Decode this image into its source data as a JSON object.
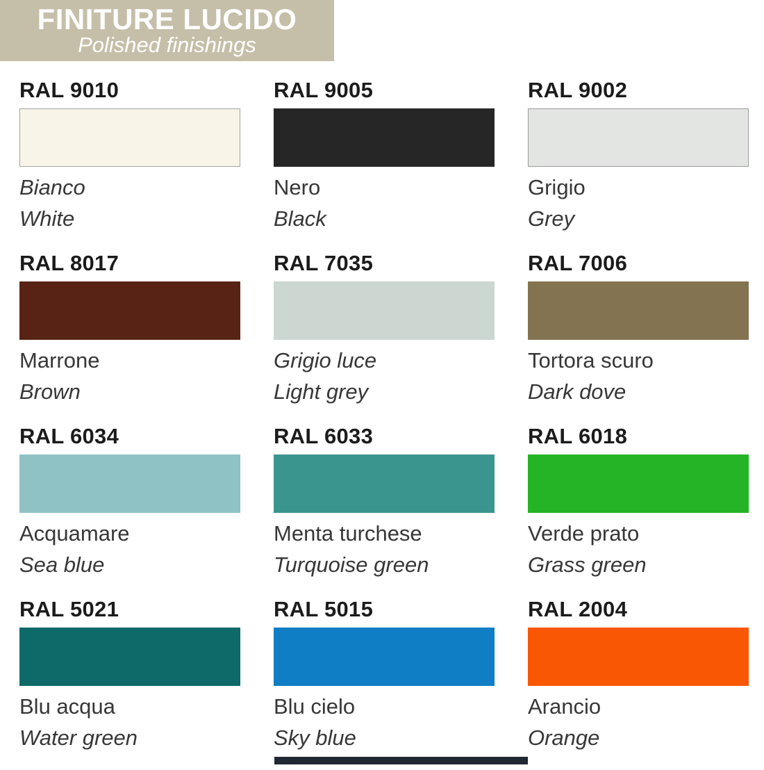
{
  "header": {
    "title": "FINITURE LUCIDO",
    "subtitle": "Polished finishings",
    "bg": "#c5bfa9",
    "text_color": "#ffffff"
  },
  "swatches": [
    {
      "code": "RAL 9010",
      "name_it": "Bianco",
      "name_en": "White",
      "color": "#f8f4e7",
      "border": "#a3a3a3",
      "it_italic": true
    },
    {
      "code": "RAL 9005",
      "name_it": "Nero",
      "name_en": "Black",
      "color": "#262626",
      "border": null,
      "it_italic": false
    },
    {
      "code": "RAL 9002",
      "name_it": "Grigio",
      "name_en": "Grey",
      "color": "#e3e5e3",
      "border": "#9b9b9b",
      "it_italic": false
    },
    {
      "code": "RAL 8017",
      "name_it": "Marrone",
      "name_en": "Brown",
      "color": "#582315",
      "border": null,
      "it_italic": false
    },
    {
      "code": "RAL 7035",
      "name_it": "Grigio luce",
      "name_en": "Light grey",
      "color": "#cbd7d0",
      "border": null,
      "it_italic": true
    },
    {
      "code": "RAL 7006",
      "name_it": "Tortora scuro",
      "name_en": "Dark dove",
      "color": "#847351",
      "border": null,
      "it_italic": false
    },
    {
      "code": "RAL 6034",
      "name_it": "Acquamare",
      "name_en": "Sea blue",
      "color": "#8fc2c4",
      "border": null,
      "it_italic": false
    },
    {
      "code": "RAL 6033",
      "name_it": "Menta turchese",
      "name_en": "Turquoise green",
      "color": "#3b958f",
      "border": null,
      "it_italic": false
    },
    {
      "code": "RAL 6018",
      "name_it": "Verde prato",
      "name_en": "Grass green",
      "color": "#25b425",
      "border": null,
      "it_italic": false
    },
    {
      "code": "RAL 5021",
      "name_it": "Blu acqua",
      "name_en": "Water green",
      "color": "#0e6a69",
      "border": null,
      "it_italic": false
    },
    {
      "code": "RAL 5015",
      "name_it": "Blu cielo",
      "name_en": "Sky blue",
      "color": "#0f7ec4",
      "border": null,
      "it_italic": false
    },
    {
      "code": "RAL 2004",
      "name_it": "Arancio",
      "name_en": "Orange",
      "color": "#fa5705",
      "border": null,
      "it_italic": false
    }
  ],
  "bottom_strip": {
    "color": "#1f2833"
  }
}
